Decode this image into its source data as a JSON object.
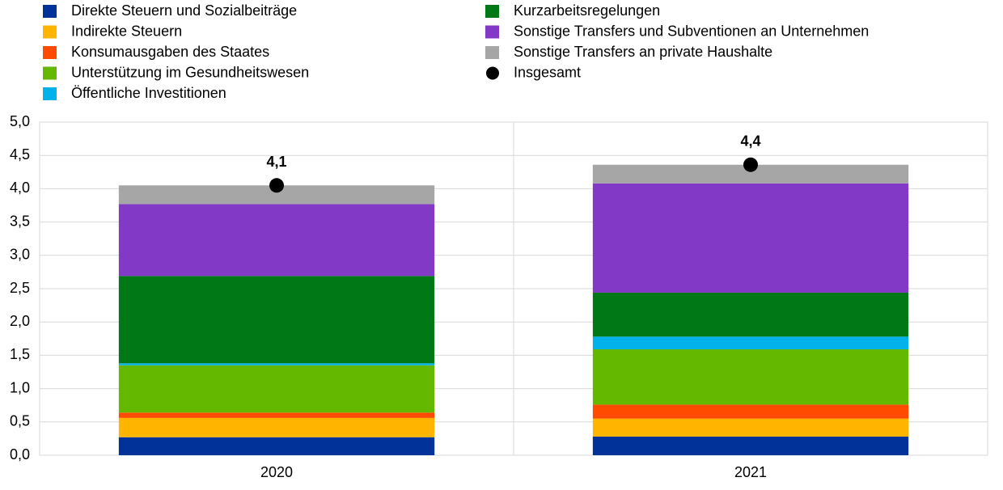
{
  "chart_data": {
    "type": "bar",
    "stacked": true,
    "grid": true,
    "categories": [
      "2020",
      "2021"
    ],
    "ylim": [
      0,
      5
    ],
    "yticks": [
      {
        "value": 0,
        "label": "0,0"
      },
      {
        "value": 0.5,
        "label": "0,5"
      },
      {
        "value": 1,
        "label": "1,0"
      },
      {
        "value": 1.5,
        "label": "1,5"
      },
      {
        "value": 2,
        "label": "2,0"
      },
      {
        "value": 2.5,
        "label": "2,5"
      },
      {
        "value": 3,
        "label": "3,0"
      },
      {
        "value": 3.5,
        "label": "3,5"
      },
      {
        "value": 4,
        "label": "4,0"
      },
      {
        "value": 4.5,
        "label": "4,5"
      },
      {
        "value": 5,
        "label": "5,0"
      }
    ],
    "series": [
      {
        "name": "Direkte Steuern und Sozialbeiträge",
        "color": "#003299",
        "values": [
          0.27,
          0.28
        ]
      },
      {
        "name": "Indirekte Steuern",
        "color": "#ffb400",
        "values": [
          0.29,
          0.27
        ]
      },
      {
        "name": "Konsumausgaben des Staates",
        "color": "#ff4b00",
        "values": [
          0.08,
          0.21
        ]
      },
      {
        "name": "Unterstützung im Gesundheitswesen",
        "color": "#65b800",
        "values": [
          0.71,
          0.83
        ]
      },
      {
        "name": "Öffentliche Investitionen",
        "color": "#00b1ea",
        "values": [
          0.03,
          0.19
        ]
      },
      {
        "name": "Kurzarbeitsregelungen",
        "color": "#007816",
        "values": [
          1.31,
          0.66
        ]
      },
      {
        "name": "Sonstige Transfers und Subventionen an Unternehmen",
        "color": "#8139c6",
        "values": [
          1.08,
          1.64
        ]
      },
      {
        "name": "Sonstige Transfers an private Haushalte",
        "color": "#a6a6a6",
        "values": [
          0.28,
          0.28
        ]
      },
      {
        "name": "Insgesamt",
        "type": "scatter",
        "color": "#000000",
        "values": [
          4.05,
          4.36
        ],
        "value_labels": [
          "4,1",
          "4,4"
        ]
      }
    ]
  }
}
